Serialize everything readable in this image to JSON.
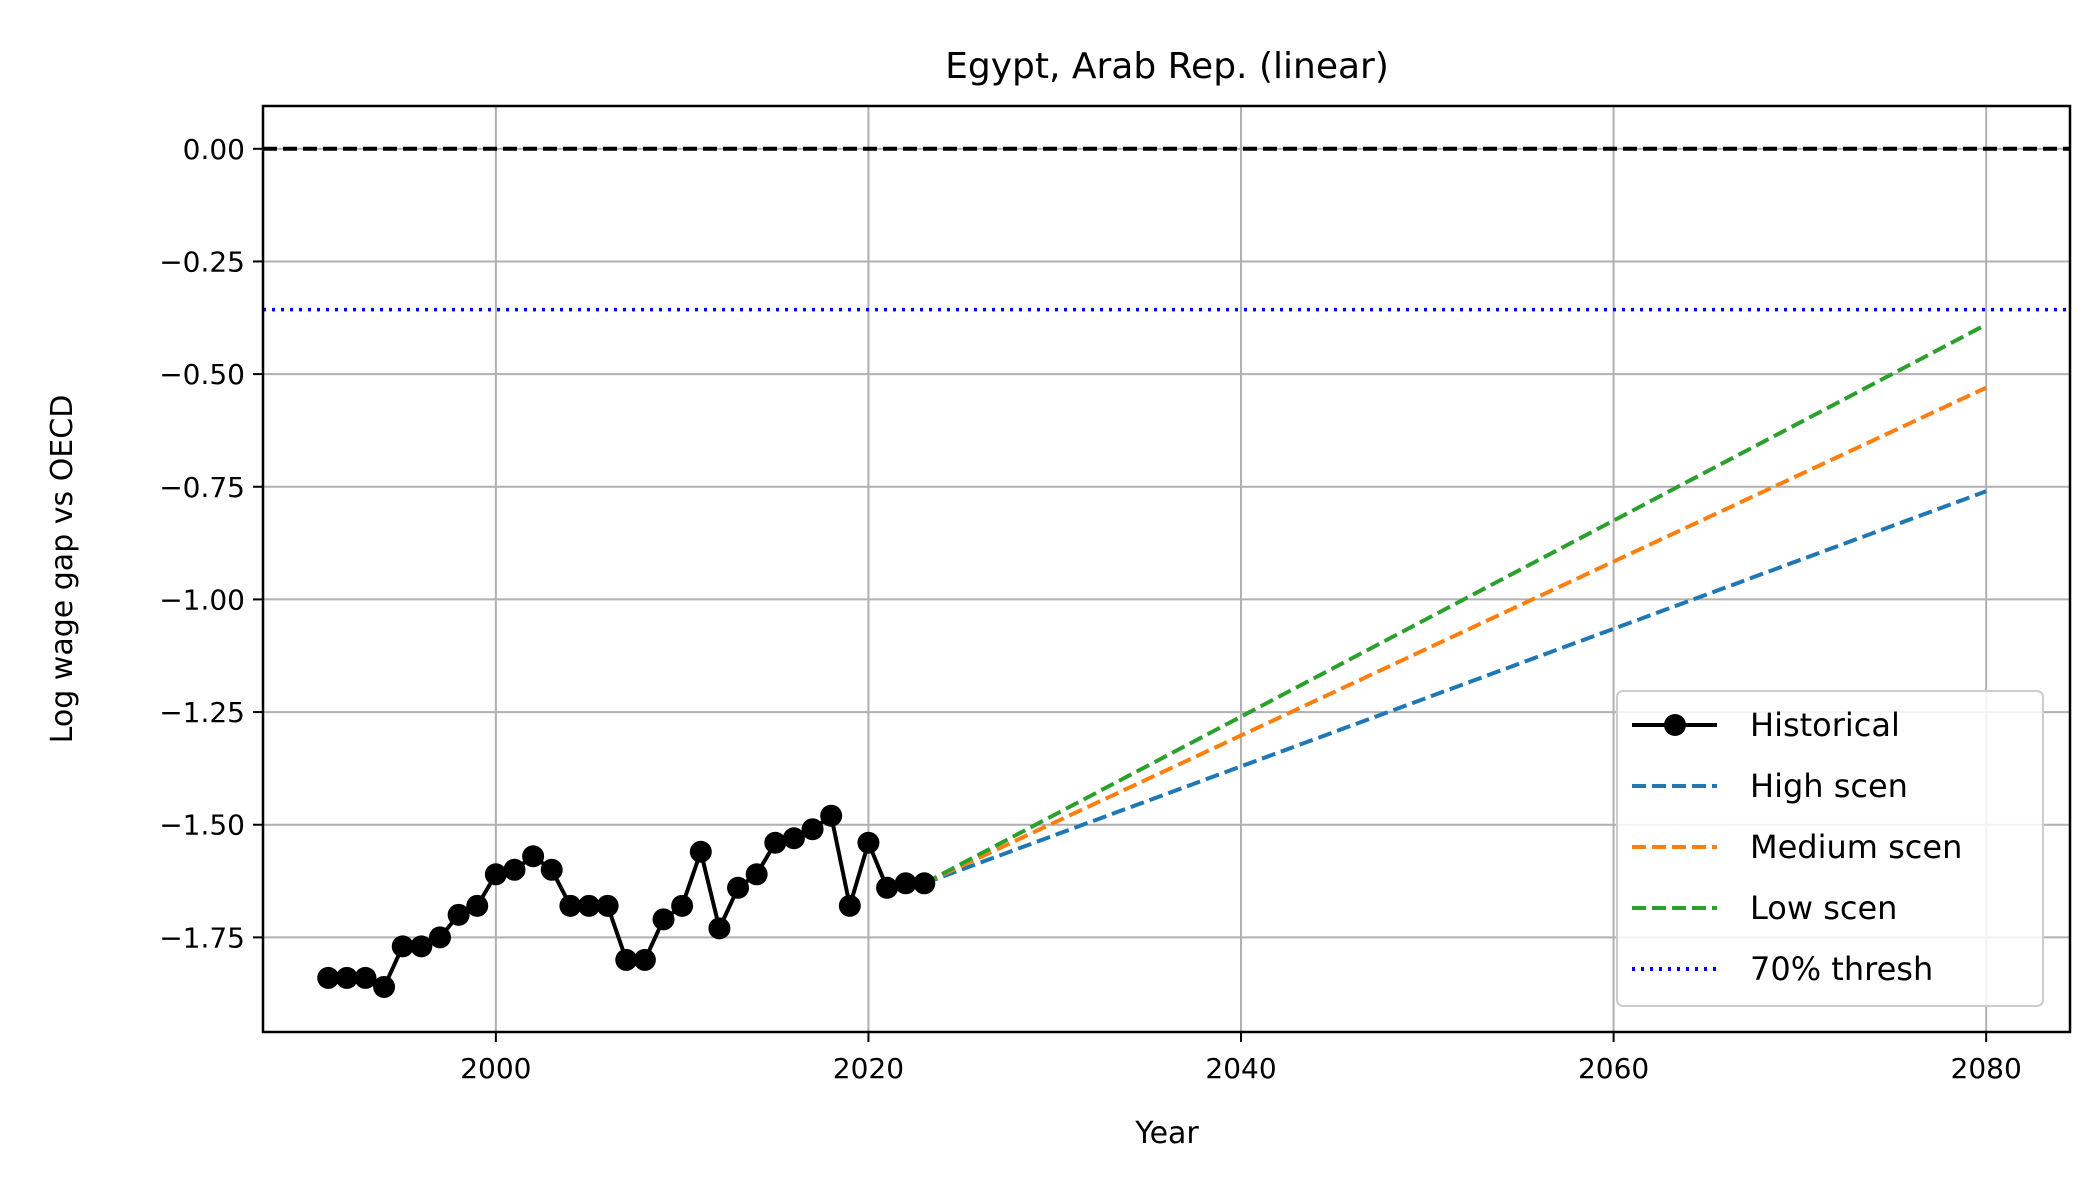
{
  "chart_data": {
    "type": "line",
    "title": "Egypt, Arab Rep. (linear)",
    "xlabel": "Year",
    "ylabel": "Log wage gap vs OECD",
    "xlim": [
      1987.5,
      2084.5
    ],
    "ylim": [
      -1.96,
      0.095
    ],
    "xticks": [
      2000,
      2020,
      2040,
      2060,
      2080
    ],
    "xtick_labels": [
      "2000",
      "2020",
      "2040",
      "2060",
      "2080"
    ],
    "yticks": [
      0.0,
      -0.25,
      -0.5,
      -0.75,
      -1.0,
      -1.25,
      -1.5,
      -1.75
    ],
    "ytick_labels": [
      "0.00",
      "−0.25",
      "−0.50",
      "−0.75",
      "−1.00",
      "−1.25",
      "−1.50",
      "−1.75"
    ],
    "grid": true,
    "legend_position": "lower-right",
    "reference_lines": [
      {
        "y": 0.0,
        "color": "#000000",
        "style": "dashed"
      },
      {
        "y": -0.357,
        "color": "#0000ff",
        "style": "dotted",
        "name": "70% thresh"
      }
    ],
    "series": [
      {
        "name": "Historical",
        "color": "#000000",
        "style": "solid",
        "marker": "circle",
        "x": [
          1991,
          1992,
          1993,
          1994,
          1995,
          1996,
          1997,
          1998,
          1999,
          2000,
          2001,
          2002,
          2003,
          2004,
          2005,
          2006,
          2007,
          2008,
          2009,
          2010,
          2011,
          2012,
          2013,
          2014,
          2015,
          2016,
          2017,
          2018,
          2019,
          2020,
          2021,
          2022,
          2023
        ],
        "y": [
          -1.84,
          -1.84,
          -1.84,
          -1.86,
          -1.77,
          -1.77,
          -1.75,
          -1.7,
          -1.68,
          -1.61,
          -1.6,
          -1.57,
          -1.6,
          -1.68,
          -1.68,
          -1.68,
          -1.8,
          -1.8,
          -1.71,
          -1.68,
          -1.56,
          -1.73,
          -1.64,
          -1.61,
          -1.54,
          -1.53,
          -1.51,
          -1.48,
          -1.68,
          -1.54,
          -1.64,
          -1.63,
          -1.63
        ]
      },
      {
        "name": "High scen",
        "color": "#1f77b4",
        "style": "dashed",
        "x": [
          2023,
          2080
        ],
        "y": [
          -1.63,
          -0.76
        ]
      },
      {
        "name": "Medium scen",
        "color": "#ff7f0e",
        "style": "dashed",
        "x": [
          2023,
          2080
        ],
        "y": [
          -1.63,
          -0.53
        ]
      },
      {
        "name": "Low scen",
        "color": "#2ca02c",
        "style": "dashed",
        "x": [
          2023,
          2080
        ],
        "y": [
          -1.63,
          -0.39
        ]
      }
    ],
    "legend": [
      {
        "label": "Historical",
        "color": "#000000",
        "style": "solid",
        "marker": "circle"
      },
      {
        "label": "High scen",
        "color": "#1f77b4",
        "style": "dashed"
      },
      {
        "label": "Medium scen",
        "color": "#ff7f0e",
        "style": "dashed"
      },
      {
        "label": "Low scen",
        "color": "#2ca02c",
        "style": "dashed"
      },
      {
        "label": "70% thresh",
        "color": "#0000ff",
        "style": "dotted"
      }
    ]
  }
}
